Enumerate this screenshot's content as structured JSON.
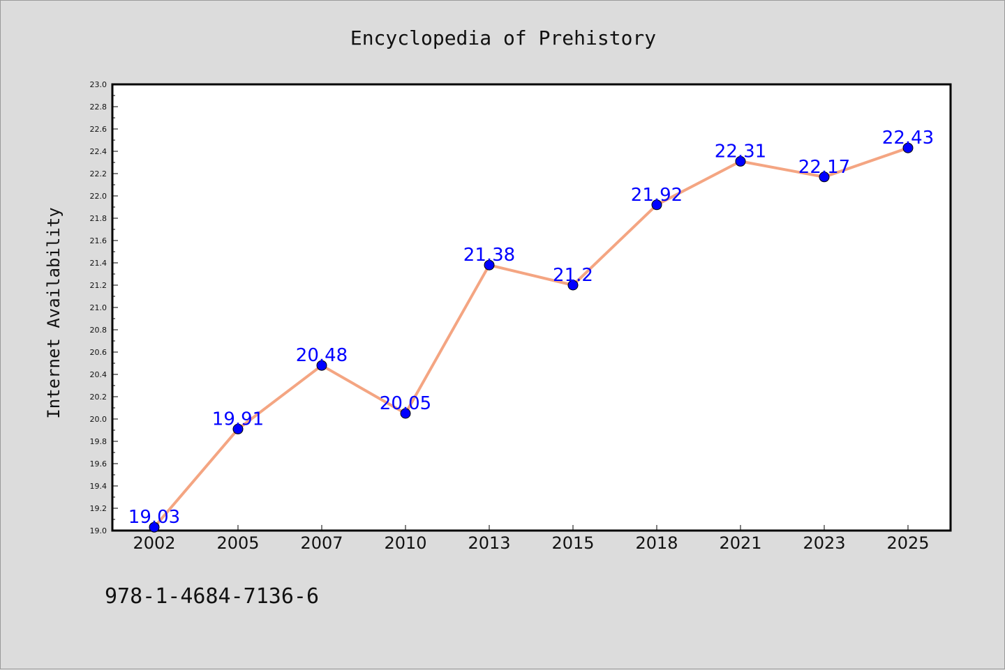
{
  "chart_data": {
    "type": "line",
    "title": "Encyclopedia of Prehistory",
    "xlabel": "",
    "ylabel": "Internet Availability",
    "categories": [
      "2002",
      "2005",
      "2007",
      "2010",
      "2013",
      "2015",
      "2018",
      "2021",
      "2023",
      "2025"
    ],
    "series": [
      {
        "values": [
          19.03,
          19.91,
          20.48,
          20.05,
          21.38,
          21.2,
          21.92,
          22.31,
          22.17,
          22.43
        ]
      }
    ],
    "data_labels": [
      "19.03",
      "19.91",
      "20.48",
      "20.05",
      "21.38",
      "21.2",
      "21.92",
      "22.31",
      "22.17",
      "22.43"
    ],
    "ylim": [
      19.0,
      23.0
    ],
    "yticks": [
      "19.0",
      "19.2",
      "19.4",
      "19.6",
      "19.8",
      "20.0",
      "20.2",
      "20.4",
      "20.6",
      "20.8",
      "21.0",
      "21.2",
      "21.4",
      "21.6",
      "21.8",
      "22.0",
      "22.2",
      "22.4",
      "22.6",
      "22.8",
      "23.0"
    ],
    "grid": false,
    "legend": "none",
    "colors": {
      "line": "#f4a582",
      "marker": "#0000ff",
      "label": "#0000ff",
      "background": "#dcdcdc",
      "plot_area": "#ffffff"
    }
  },
  "footer": {
    "isbn": "978-1-4684-7136-6"
  }
}
